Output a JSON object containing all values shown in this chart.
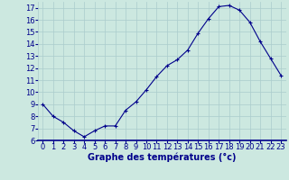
{
  "x": [
    0,
    1,
    2,
    3,
    4,
    5,
    6,
    7,
    8,
    9,
    10,
    11,
    12,
    13,
    14,
    15,
    16,
    17,
    18,
    19,
    20,
    21,
    22,
    23
  ],
  "y": [
    9,
    8,
    7.5,
    6.8,
    6.3,
    6.8,
    7.2,
    7.2,
    8.5,
    9.2,
    10.2,
    11.3,
    12.2,
    12.7,
    13.5,
    14.9,
    16.1,
    17.1,
    17.2,
    16.8,
    15.8,
    14.2,
    12.8,
    11.4
  ],
  "line_color": "#00008b",
  "marker": "+",
  "marker_size": 3,
  "marker_linewidth": 0.8,
  "background_color": "#cce8e0",
  "grid_color": "#aacccc",
  "xlabel": "Graphe des températures (°c)",
  "xlabel_color": "#00008b",
  "xlabel_fontsize": 7,
  "tick_color": "#00008b",
  "tick_fontsize": 6,
  "ylim": [
    6,
    17.5
  ],
  "xlim": [
    -0.5,
    23.5
  ],
  "yticks": [
    6,
    7,
    8,
    9,
    10,
    11,
    12,
    13,
    14,
    15,
    16,
    17
  ],
  "xticks": [
    0,
    1,
    2,
    3,
    4,
    5,
    6,
    7,
    8,
    9,
    10,
    11,
    12,
    13,
    14,
    15,
    16,
    17,
    18,
    19,
    20,
    21,
    22,
    23
  ]
}
